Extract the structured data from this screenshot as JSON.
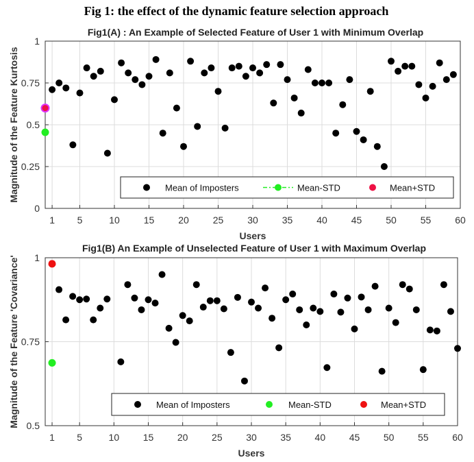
{
  "figure_title": "Fig 1: the effect of the dynamic feature selection approach",
  "chart_data": [
    {
      "type": "scatter",
      "title": "Fig1(A) : An Example of Selected Feature of User 1 with Minimum Overlap",
      "xlabel": "Users",
      "ylabel": "Magnitude of the Feature Kurtosis",
      "xlim": [
        0,
        60
      ],
      "ylim": [
        0,
        1
      ],
      "xticks": [
        1,
        5,
        10,
        15,
        20,
        25,
        30,
        35,
        40,
        45,
        50,
        55,
        60
      ],
      "yticks": [
        0,
        0.25,
        0.5,
        0.75,
        1
      ],
      "ytick_labels": [
        "0",
        "0.25",
        "0.5",
        "0.75",
        "1"
      ],
      "grid": true,
      "legend_position": "bottom-right",
      "series": [
        {
          "name": "Mean of Imposters",
          "color": "#000000",
          "legend_marker": "dot",
          "x": [
            1,
            2,
            3,
            4,
            5,
            6,
            7,
            8,
            9,
            10,
            11,
            12,
            13,
            14,
            15,
            16,
            17,
            18,
            19,
            20,
            21,
            22,
            23,
            24,
            25,
            26,
            27,
            28,
            29,
            30,
            31,
            32,
            33,
            34,
            35,
            36,
            37,
            38,
            39,
            40,
            41,
            42,
            43,
            44,
            45,
            46,
            47,
            48,
            49,
            50,
            51,
            52,
            53,
            54,
            55,
            56,
            57,
            58,
            59
          ],
          "y": [
            0.71,
            0.75,
            0.72,
            0.38,
            0.69,
            0.84,
            0.79,
            0.82,
            0.33,
            0.65,
            0.87,
            0.81,
            0.77,
            0.74,
            0.79,
            0.89,
            0.45,
            0.81,
            0.6,
            0.37,
            0.88,
            0.49,
            0.81,
            0.84,
            0.7,
            0.48,
            0.84,
            0.85,
            0.79,
            0.84,
            0.81,
            0.86,
            0.63,
            0.86,
            0.77,
            0.66,
            0.57,
            0.83,
            0.75,
            0.75,
            0.75,
            0.45,
            0.62,
            0.77,
            0.46,
            0.41,
            0.7,
            0.37,
            0.25,
            0.88,
            0.82,
            0.85,
            0.85,
            0.74,
            0.66,
            0.73,
            0.87,
            0.77,
            0.8
          ]
        },
        {
          "name": "Mean-STD",
          "color": "#22ee22",
          "legend_marker": "dash-dot-line",
          "x": [
            0
          ],
          "y": [
            0.455
          ]
        },
        {
          "name": "Mean+STD",
          "color": "#ee1144",
          "legend_marker": "dot",
          "x": [
            0
          ],
          "y": [
            0.6
          ]
        }
      ]
    },
    {
      "type": "scatter",
      "title": "Fig1(B) An Example of Unselected Feature of User 1 with Maximum Overlap",
      "xlabel": "Users",
      "ylabel": "Magnitude of the Feature 'Covariance'",
      "xlim": [
        0,
        60
      ],
      "ylim": [
        0.5,
        1
      ],
      "xticks": [
        1,
        5,
        10,
        15,
        20,
        25,
        30,
        35,
        40,
        45,
        50,
        55,
        60
      ],
      "yticks": [
        0.5,
        0.75,
        1
      ],
      "ytick_labels": [
        "0.5",
        "0.75",
        "1"
      ],
      "grid": true,
      "legend_position": "bottom-right",
      "series": [
        {
          "name": "Mean of Imposters",
          "color": "#000000",
          "legend_marker": "dot",
          "x": [
            2,
            3,
            4,
            5,
            6,
            7,
            8,
            9,
            11,
            12,
            13,
            14,
            15,
            16,
            17,
            18,
            19,
            20,
            21,
            22,
            23,
            24,
            25,
            26,
            27,
            28,
            29,
            30,
            31,
            32,
            33,
            34,
            35,
            36,
            37,
            38,
            39,
            40,
            41,
            42,
            43,
            44,
            45,
            46,
            47,
            48,
            49,
            50,
            51,
            52,
            53,
            54,
            55,
            56,
            57,
            58,
            59,
            60
          ],
          "y": [
            0.905,
            0.815,
            0.885,
            0.875,
            0.877,
            0.815,
            0.85,
            0.877,
            0.69,
            0.92,
            0.88,
            0.845,
            0.875,
            0.865,
            0.95,
            0.79,
            0.748,
            0.828,
            0.812,
            0.92,
            0.853,
            0.872,
            0.872,
            0.848,
            0.718,
            0.882,
            0.633,
            0.868,
            0.85,
            0.91,
            0.82,
            0.732,
            0.875,
            0.892,
            0.845,
            0.8,
            0.85,
            0.84,
            0.673,
            0.892,
            0.838,
            0.88,
            0.788,
            0.883,
            0.845,
            0.915,
            0.662,
            0.85,
            0.807,
            0.92,
            0.907,
            0.845,
            0.667,
            0.785,
            0.782,
            0.92,
            0.84,
            0.73
          ]
        },
        {
          "name": "Mean-STD",
          "color": "#22ee22",
          "legend_marker": "dot",
          "x": [
            1
          ],
          "y": [
            0.687
          ]
        },
        {
          "name": "Mean+STD",
          "color": "#ee1111",
          "legend_marker": "dot",
          "x": [
            1
          ],
          "y": [
            0.982
          ]
        }
      ]
    }
  ]
}
